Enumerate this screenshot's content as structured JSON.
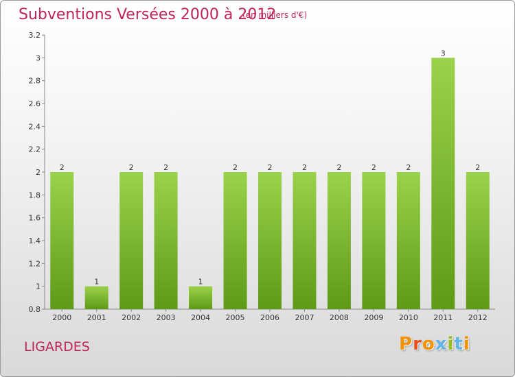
{
  "header": {
    "title": "Subventions Versées 2000 à 2012",
    "subtitle": "(en milliers d'€)"
  },
  "footer": {
    "place": "LIGARDES",
    "logo": [
      "P",
      "r",
      "o",
      "x",
      "i",
      "t",
      "i"
    ]
  },
  "colors": {
    "title": "#c0245a",
    "bar_top": "#9bd24b",
    "bar_bottom": "#5e9a16",
    "logo": [
      "#f39200",
      "#e94e1b",
      "#f39200",
      "#5fb4e5",
      "#93c01f",
      "#5fb4e5",
      "#f39200"
    ]
  },
  "chart_data": {
    "type": "bar",
    "categories": [
      "2000",
      "2001",
      "2002",
      "2003",
      "2004",
      "2005",
      "2006",
      "2007",
      "2008",
      "2009",
      "2010",
      "2011",
      "2012"
    ],
    "values": [
      2,
      1,
      2,
      2,
      1,
      2,
      2,
      2,
      2,
      2,
      2,
      3,
      2
    ],
    "data_labels": [
      "2",
      "1",
      "2",
      "2",
      "1",
      "2",
      "2",
      "2",
      "2",
      "2",
      "2",
      "3",
      "2"
    ],
    "title": "Subventions Versées 2000 à 2012",
    "subtitle": "(en milliers d'€)",
    "xlabel": "",
    "ylabel": "",
    "ylim": [
      0.8,
      3.2
    ],
    "yticks": [
      0.8,
      1,
      1.2,
      1.4,
      1.6,
      1.8,
      2,
      2.2,
      2.4,
      2.6,
      2.8,
      3,
      3.2
    ],
    "ytick_labels": [
      "0.8",
      "1",
      "1.2",
      "1.4",
      "1.6",
      "1.8",
      "2",
      "2.2",
      "2.4",
      "2.6",
      "2.8",
      "3",
      "3.2"
    ],
    "grid": false,
    "legend": "none"
  }
}
